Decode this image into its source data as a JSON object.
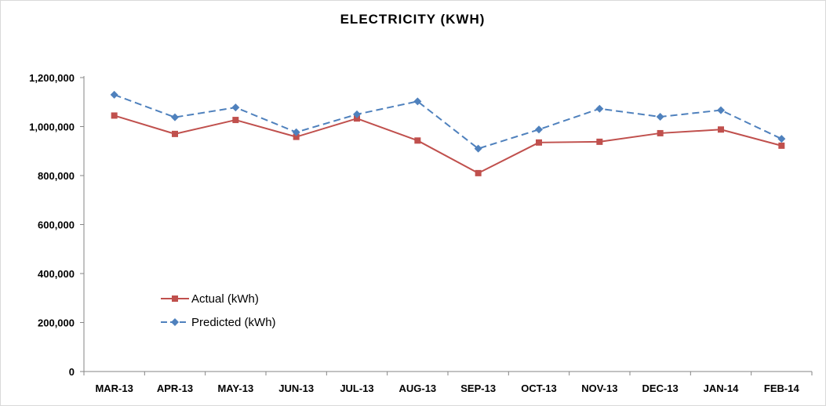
{
  "chart_data": {
    "type": "line",
    "title": "ELECTRICITY (KWH)",
    "xlabel": "",
    "ylabel": "",
    "ylim": [
      0,
      1200000
    ],
    "yticks": [
      0,
      200000,
      400000,
      600000,
      800000,
      1000000,
      1200000
    ],
    "ytick_labels": [
      "0",
      "200,000",
      "400,000",
      "600,000",
      "800,000",
      "1,000,000",
      "1,200,000"
    ],
    "grid": false,
    "legend_position": "lower-left",
    "categories": [
      "MAR-13",
      "APR-13",
      "MAY-13",
      "JUN-13",
      "JUL-13",
      "AUG-13",
      "SEP-13",
      "OCT-13",
      "NOV-13",
      "DEC-13",
      "JAN-14",
      "FEB-14"
    ],
    "series": [
      {
        "name": "Actual (kWh)",
        "color": "#c0504d",
        "marker": "square",
        "line_style": "solid",
        "values": [
          1045000,
          970000,
          1027000,
          958000,
          1033000,
          943000,
          810000,
          935000,
          938000,
          973000,
          988000,
          922000
        ]
      },
      {
        "name": "Predicted (kWh)",
        "color": "#4f81bd",
        "marker": "diamond",
        "line_style": "dashed",
        "values": [
          1130000,
          1038000,
          1078000,
          977000,
          1050000,
          1103000,
          910000,
          988000,
          1073000,
          1040000,
          1067000,
          950000
        ]
      }
    ]
  }
}
